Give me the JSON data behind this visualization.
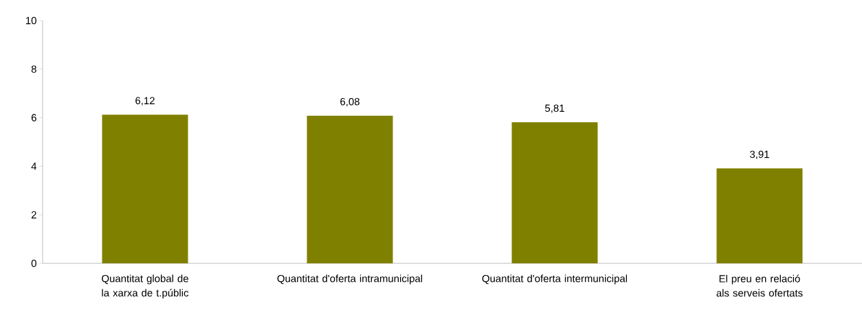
{
  "chart_data": {
    "type": "bar",
    "categories": [
      "Quantitat global de la xarxa de t.públic",
      "Quantitat d'oferta intramunicipal",
      "Quantitat d'oferta intermunicipal",
      "El preu en relació als serveis ofertats"
    ],
    "values": [
      6.12,
      6.08,
      5.81,
      3.91
    ],
    "value_labels": [
      "6,12",
      "6,08",
      "5,81",
      "3,91"
    ],
    "color": "#808000",
    "ylim": [
      0,
      10
    ],
    "yticks": [
      0,
      2,
      4,
      6,
      8,
      10
    ],
    "grid": false
  }
}
